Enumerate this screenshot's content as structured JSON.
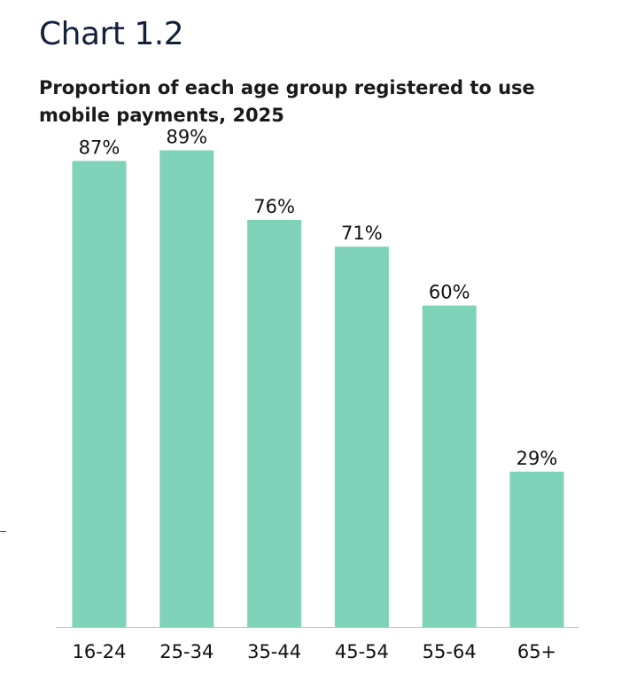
{
  "header": {
    "chart_number": "Chart 1.2",
    "subtitle": "Proportion of each age group registered to use mobile payments, 2025"
  },
  "colors": {
    "bar": "#7fd3b8",
    "title": "#14213d",
    "axis": "#bfbfbf"
  },
  "chart_data": {
    "type": "bar",
    "title": "Chart 1.2",
    "subtitle": "Proportion of each age group registered to use mobile payments, 2025",
    "categories": [
      "16-24",
      "25-34",
      "35-44",
      "45-54",
      "55-64",
      "65+"
    ],
    "values": [
      87,
      89,
      76,
      71,
      60,
      29
    ],
    "value_labels": [
      "87%",
      "89%",
      "76%",
      "71%",
      "60%",
      "29%"
    ],
    "xlabel": "",
    "ylabel": "",
    "unit": "%",
    "ylim": [
      0,
      100
    ],
    "grid": false,
    "legend": "none"
  }
}
